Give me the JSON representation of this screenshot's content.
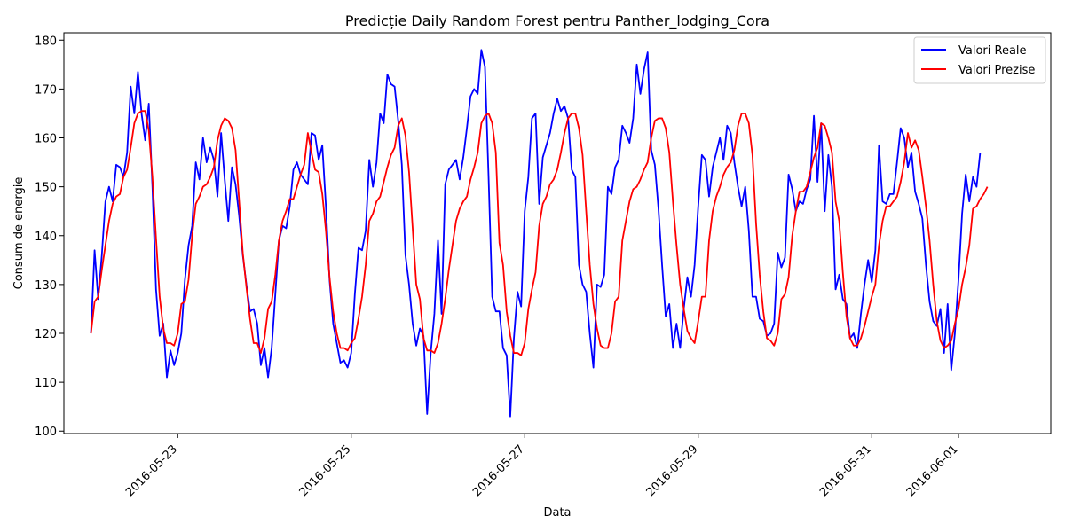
{
  "chart_data": {
    "type": "line",
    "title": "Predicție Daily Random Forest pentru Panther_lodging_Cora",
    "xlabel": "Data",
    "ylabel": "Consum de energie",
    "x_start": "2016-05-22 00:00",
    "x_step_hours": 1,
    "x_ticks": [
      "2016-05-23",
      "2016-05-25",
      "2016-05-27",
      "2016-05-29",
      "2016-05-31",
      "2016-06-01"
    ],
    "ylim": [
      99.5,
      181.5
    ],
    "y_ticks": [
      100,
      110,
      120,
      130,
      140,
      150,
      160,
      170,
      180
    ],
    "grid": false,
    "legend_position": "top-right",
    "series": [
      {
        "name": "Valori Reale",
        "color": "#0000ff",
        "values": [
          120,
          137,
          127,
          136,
          147,
          150,
          147,
          154.5,
          154,
          152,
          157,
          170.5,
          165,
          173.5,
          165,
          159.5,
          167,
          150,
          129,
          119.5,
          122,
          111,
          116.5,
          113.5,
          116,
          120,
          131,
          138,
          142,
          155,
          151.5,
          160,
          155,
          158,
          155.5,
          148,
          161,
          151.5,
          143,
          154,
          150.5,
          144,
          136,
          130,
          124.5,
          125,
          122,
          113.5,
          117,
          111,
          117,
          128,
          139,
          142,
          141.5,
          146,
          153.5,
          155,
          152.5,
          151.5,
          150.5,
          161,
          160.5,
          155.5,
          158.5,
          146,
          131,
          122,
          118,
          114,
          114.5,
          113,
          116,
          128,
          137.5,
          137,
          141,
          155.5,
          150,
          155,
          165,
          163,
          173,
          171,
          170.5,
          163.5,
          154.5,
          136,
          130,
          122,
          117.5,
          121,
          119.5,
          103.5,
          116,
          124,
          139,
          124,
          150.5,
          153.5,
          154.5,
          155.5,
          151.5,
          156,
          162,
          168.5,
          170,
          169,
          178,
          174.5,
          152,
          127.5,
          124.5,
          124.5,
          117,
          115.5,
          103,
          119,
          128.5,
          125.5,
          145,
          152,
          164,
          165,
          146.5,
          156,
          158.5,
          161,
          165,
          168,
          165.5,
          166.5,
          164,
          153.5,
          152,
          134,
          130,
          128.5,
          120,
          113,
          130,
          129.5,
          132,
          150,
          148.5,
          154,
          155.5,
          162.5,
          161,
          159,
          164,
          175,
          169,
          174,
          177.5,
          157.5,
          154.5,
          145.5,
          134,
          123.5,
          126,
          117,
          122,
          117,
          125,
          131.5,
          127.5,
          134,
          146,
          156.5,
          155.5,
          148,
          154,
          157,
          160,
          155.5,
          162.5,
          161,
          155,
          150,
          146,
          150,
          141,
          127.5,
          127.5,
          123,
          122.5,
          119.5,
          120,
          122,
          136.5,
          133.5,
          135.5,
          152.5,
          149.5,
          145,
          147,
          146.5,
          149.5,
          151.5,
          164.5,
          151,
          163,
          145,
          156.5,
          150,
          129,
          132,
          127,
          126,
          119,
          120,
          117,
          124,
          130,
          135,
          130.5,
          137,
          158.5,
          147,
          146.5,
          148.5,
          148.5,
          155,
          162,
          160,
          154,
          157,
          149,
          146.5,
          143.5,
          134,
          126.5,
          122.5,
          121.5,
          125,
          116,
          126,
          112.5,
          120,
          131,
          144.5,
          152.5,
          147,
          152,
          150,
          157
        ]
      },
      {
        "name": "Valori Prezise",
        "color": "#ff0000",
        "values": [
          120,
          126.5,
          127.5,
          133,
          138,
          143,
          146.5,
          148,
          148.5,
          152,
          153.5,
          158,
          163,
          165,
          165.5,
          165.5,
          161.5,
          152,
          139.5,
          127.5,
          121,
          118,
          118,
          117.5,
          120,
          126,
          126.5,
          131,
          140,
          146.5,
          148,
          150,
          150.5,
          152,
          154,
          159.5,
          162.5,
          164,
          163.5,
          162,
          157.5,
          147,
          136.5,
          129.5,
          123,
          118,
          118,
          116,
          119,
          125,
          126.5,
          132,
          139,
          143,
          145,
          147.5,
          147.5,
          150,
          152.5,
          154.5,
          161,
          157,
          153.5,
          153,
          148.5,
          141,
          131.5,
          124.5,
          120,
          117,
          117,
          116.5,
          118,
          119,
          123,
          127.5,
          134,
          143,
          144.5,
          147,
          148,
          151,
          154,
          156.5,
          158,
          162.5,
          164,
          160.5,
          153,
          141.5,
          130,
          127,
          119,
          116.5,
          116.5,
          116,
          118,
          122,
          127,
          133,
          138,
          143,
          145.5,
          147,
          148,
          151.5,
          154,
          157,
          163,
          164.5,
          165,
          163,
          157,
          138.5,
          134,
          124.5,
          119.5,
          116,
          116,
          115.5,
          118,
          125,
          129,
          132.5,
          142,
          146.5,
          148,
          150.5,
          151.5,
          153.5,
          157,
          161,
          164,
          165,
          165,
          162,
          156.5,
          145,
          134,
          126,
          121,
          117.5,
          117,
          117,
          120,
          126.5,
          127.5,
          139,
          143,
          147,
          149.5,
          150,
          151.5,
          153.5,
          155,
          160,
          163.5,
          164,
          164,
          162,
          157,
          147,
          138,
          130,
          125,
          120.5,
          119,
          118,
          122.5,
          127.5,
          127.5,
          139,
          145,
          148,
          150,
          152.5,
          154,
          155,
          157.5,
          162.5,
          165,
          165,
          163,
          156.5,
          142.5,
          132,
          124.5,
          119,
          118.5,
          117.5,
          120,
          127,
          128,
          131.5,
          140,
          145,
          149,
          149,
          150,
          153,
          156,
          158,
          163,
          162.5,
          160,
          157,
          147,
          143,
          132.5,
          123.5,
          119,
          117.5,
          117.5,
          119,
          121.5,
          124.5,
          127.5,
          130,
          138,
          143,
          146,
          146,
          147,
          148,
          151,
          155,
          161,
          158,
          159.5,
          157.5,
          152,
          146,
          139,
          130,
          122.5,
          118.5,
          117,
          117.5,
          118.5,
          122,
          125,
          130,
          133.5,
          138,
          145.5,
          146,
          147.5,
          148.5,
          150
        ]
      }
    ]
  }
}
